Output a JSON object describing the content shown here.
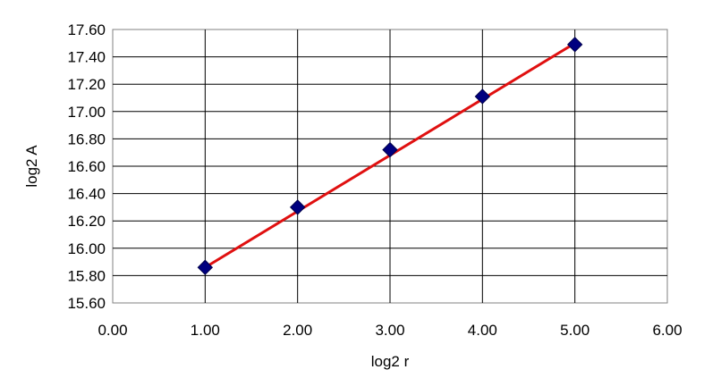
{
  "chart_data": {
    "type": "scatter",
    "xlabel": "log2 r",
    "ylabel": "log2 A",
    "xlim": [
      0,
      6
    ],
    "ylim": [
      15.6,
      17.6
    ],
    "x_ticks": [
      "0.00",
      "1.00",
      "2.00",
      "3.00",
      "4.00",
      "5.00",
      "6.00"
    ],
    "y_ticks": [
      "15.60",
      "15.80",
      "16.00",
      "16.20",
      "16.40",
      "16.60",
      "16.80",
      "17.00",
      "17.20",
      "17.40",
      "17.60"
    ],
    "grid": true,
    "series": [
      {
        "marker": "diamond",
        "color": "#000080",
        "points": [
          {
            "x": 1.0,
            "y": 15.86
          },
          {
            "x": 2.0,
            "y": 16.3
          },
          {
            "x": 3.0,
            "y": 16.72
          },
          {
            "x": 4.0,
            "y": 17.11
          },
          {
            "x": 5.0,
            "y": 17.49
          }
        ]
      }
    ],
    "trendline": {
      "color": "#e01010",
      "from": {
        "x": 1.0,
        "y": 15.86
      },
      "to": {
        "x": 5.0,
        "y": 17.5
      }
    }
  }
}
